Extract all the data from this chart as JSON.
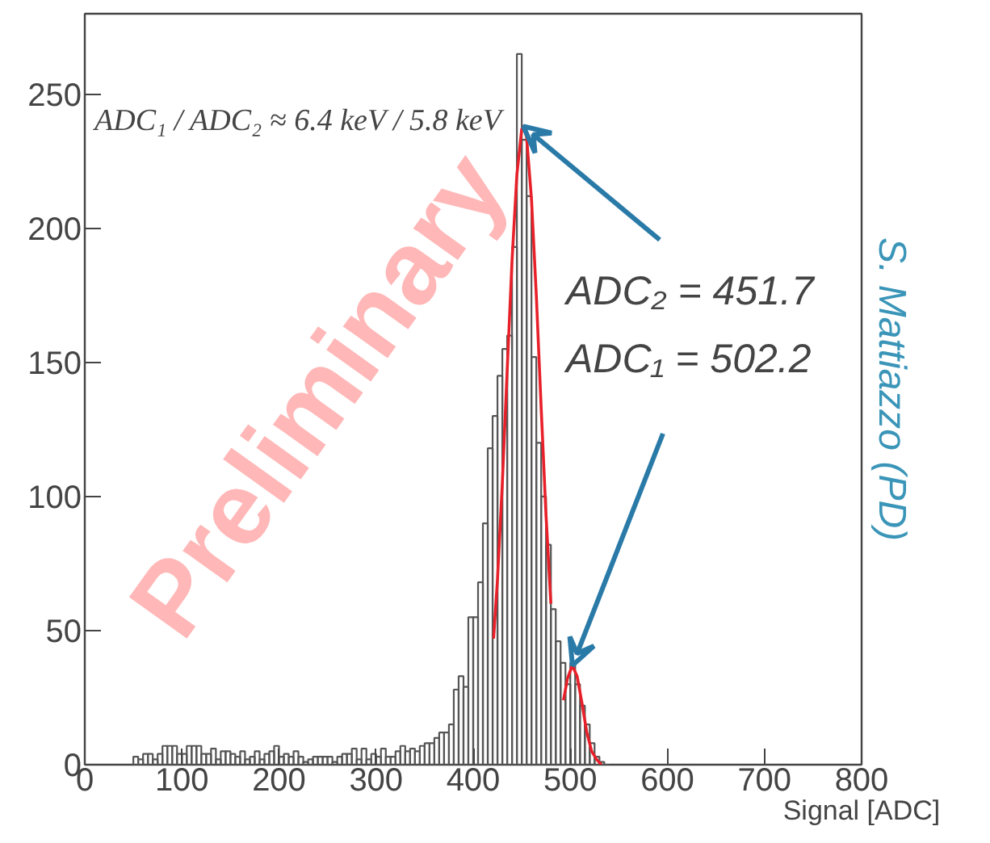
{
  "chart_data": {
    "type": "histogram",
    "xlabel": "Signal [ADC]",
    "xlim": [
      0,
      800
    ],
    "ylim": [
      0,
      280
    ],
    "xticks": [
      0,
      100,
      200,
      300,
      400,
      500,
      600,
      700,
      800
    ],
    "yticks": [
      0,
      50,
      100,
      150,
      200,
      250
    ],
    "grid": false,
    "bins": [
      50,
      55,
      60,
      65,
      70,
      75,
      80,
      85,
      90,
      95,
      100,
      105,
      110,
      115,
      120,
      125,
      130,
      135,
      140,
      145,
      150,
      155,
      160,
      165,
      170,
      175,
      180,
      185,
      190,
      195,
      200,
      205,
      210,
      215,
      220,
      225,
      230,
      235,
      240,
      245,
      250,
      255,
      260,
      265,
      270,
      275,
      280,
      285,
      290,
      295,
      300,
      305,
      310,
      315,
      320,
      325,
      330,
      335,
      340,
      345,
      350,
      355,
      360,
      365,
      370,
      375,
      380,
      385,
      390,
      395,
      400,
      405,
      410,
      415,
      420,
      425,
      430,
      435,
      440,
      445,
      450,
      455,
      460,
      465,
      470,
      475,
      480,
      485,
      490,
      495,
      500,
      505,
      510,
      515,
      520,
      525,
      530,
      535,
      540
    ],
    "values": [
      3,
      2,
      4,
      4,
      2,
      4,
      7,
      7,
      7,
      4,
      4,
      7,
      7,
      7,
      4,
      4,
      6,
      2,
      5,
      5,
      4,
      3,
      5,
      2,
      3,
      5,
      2,
      4,
      5,
      7,
      3,
      4,
      3,
      5,
      3,
      1,
      2,
      3,
      3,
      3,
      3,
      1,
      3,
      4,
      4,
      6,
      2,
      6,
      2,
      4,
      3,
      6,
      3,
      3,
      5,
      7,
      5,
      6,
      5,
      7,
      8,
      8,
      10,
      12,
      12,
      15,
      28,
      33,
      29,
      55,
      55,
      68,
      90,
      118,
      130,
      145,
      155,
      160,
      193,
      265,
      233,
      212,
      152,
      120,
      100,
      82,
      58,
      46,
      38,
      30,
      38,
      30,
      22,
      15,
      8,
      3,
      1,
      0
    ],
    "color": "#555555",
    "series": [
      {
        "type": "line",
        "color": "#e8202a",
        "x": [
          421,
          425,
          430,
          435,
          440,
          445,
          450,
          452,
          455,
          460,
          465,
          470,
          475,
          480
        ],
        "values": [
          47,
          69,
          105,
          147,
          188,
          220,
          237,
          238,
          234,
          211,
          175,
          133,
          93,
          60
        ]
      },
      {
        "type": "line",
        "color": "#e8202a",
        "x": [
          493,
          497,
          502,
          507,
          512,
          517,
          522,
          527,
          532
        ],
        "values": [
          24,
          32,
          37,
          33,
          23,
          12,
          5,
          2,
          0
        ]
      }
    ],
    "annotations": [
      {
        "text": "ADC₂ = 451.7",
        "x": 451.7,
        "y": 238
      },
      {
        "text": "ADC₁ = 502.2",
        "x": 502.2,
        "y": 37
      },
      "ADC₁ / ADC₂ ≈ 6.4 keV / 5.8 keV",
      "Preliminary",
      "S. Mattiazzo (PD)"
    ]
  }
}
